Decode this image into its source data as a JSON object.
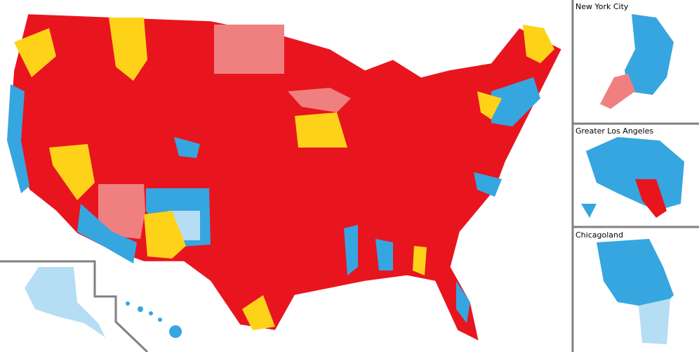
{
  "insets": [
    {
      "label": "New York City"
    },
    {
      "label": "Greater Los Angeles"
    },
    {
      "label": "Chicagoland"
    }
  ]
}
